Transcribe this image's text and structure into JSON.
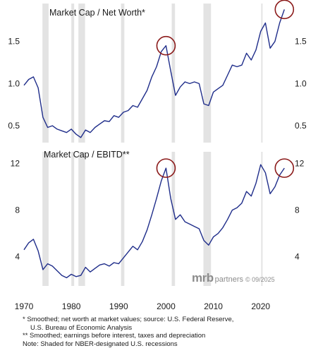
{
  "chart_data": [
    {
      "type": "line",
      "title": "Market Cap / Net Worth*",
      "y_ticks": [
        "0.5",
        "1.0",
        "1.5"
      ],
      "ylim": [
        0.3,
        1.95
      ],
      "xlim": [
        1970,
        2026
      ],
      "x": [
        1970,
        1971,
        1972,
        1973,
        1974,
        1975,
        1976,
        1977,
        1978,
        1979,
        1980,
        1981,
        1982,
        1983,
        1984,
        1985,
        1986,
        1987,
        1988,
        1989,
        1990,
        1991,
        1992,
        1993,
        1994,
        1995,
        1996,
        1997,
        1998,
        1999,
        2000,
        2001,
        2002,
        2003,
        2004,
        2005,
        2006,
        2007,
        2008,
        2009,
        2010,
        2011,
        2012,
        2013,
        2014,
        2015,
        2016,
        2017,
        2018,
        2019,
        2020,
        2021,
        2022,
        2023,
        2024,
        2025
      ],
      "values": [
        0.98,
        1.05,
        1.08,
        0.95,
        0.6,
        0.48,
        0.5,
        0.46,
        0.44,
        0.42,
        0.46,
        0.4,
        0.36,
        0.45,
        0.42,
        0.48,
        0.52,
        0.56,
        0.55,
        0.62,
        0.6,
        0.66,
        0.68,
        0.74,
        0.72,
        0.82,
        0.92,
        1.08,
        1.2,
        1.38,
        1.45,
        1.15,
        0.86,
        0.96,
        1.02,
        1.0,
        1.02,
        1.0,
        0.76,
        0.74,
        0.9,
        0.94,
        0.98,
        1.1,
        1.22,
        1.2,
        1.22,
        1.36,
        1.28,
        1.4,
        1.62,
        1.72,
        1.42,
        1.5,
        1.72,
        1.88
      ],
      "highlight_points": [
        {
          "x": 2000,
          "y": 1.45
        },
        {
          "x": 2025,
          "y": 1.88
        }
      ]
    },
    {
      "type": "line",
      "title": "Market Cap / EBITD**",
      "y_ticks": [
        "4",
        "8",
        "12"
      ],
      "ylim": [
        1.5,
        13.0
      ],
      "xlim": [
        1970,
        2026
      ],
      "x": [
        1970,
        1971,
        1972,
        1973,
        1974,
        1975,
        1976,
        1977,
        1978,
        1979,
        1980,
        1981,
        1982,
        1983,
        1984,
        1985,
        1986,
        1987,
        1988,
        1989,
        1990,
        1991,
        1992,
        1993,
        1994,
        1995,
        1996,
        1997,
        1998,
        1999,
        2000,
        2001,
        2002,
        2003,
        2004,
        2005,
        2006,
        2007,
        2008,
        2009,
        2010,
        2011,
        2012,
        2013,
        2014,
        2015,
        2016,
        2017,
        2018,
        2019,
        2020,
        2021,
        2022,
        2023,
        2024,
        2025
      ],
      "values": [
        4.6,
        5.2,
        5.5,
        4.5,
        2.9,
        3.4,
        3.2,
        2.8,
        2.4,
        2.2,
        2.5,
        2.3,
        2.4,
        3.1,
        2.7,
        3.0,
        3.3,
        3.4,
        3.2,
        3.5,
        3.4,
        3.9,
        4.4,
        4.9,
        4.6,
        5.3,
        6.3,
        7.6,
        9.0,
        10.5,
        11.6,
        9.0,
        7.2,
        7.6,
        7.0,
        6.8,
        6.6,
        6.4,
        5.4,
        5.0,
        5.7,
        6.0,
        6.5,
        7.2,
        8.0,
        8.2,
        8.6,
        9.6,
        9.2,
        10.3,
        11.9,
        11.2,
        9.4,
        10.0,
        11.0,
        11.6
      ],
      "highlight_points": [
        {
          "x": 2000,
          "y": 11.6
        },
        {
          "x": 2025,
          "y": 11.6
        }
      ]
    }
  ],
  "x_ticks": [
    "1970",
    "1980",
    "1990",
    "2000",
    "2010",
    "2020"
  ],
  "recessions": [
    [
      1973.9,
      1975.2
    ],
    [
      1980.0,
      1980.6
    ],
    [
      1981.5,
      1982.9
    ],
    [
      1990.5,
      1991.2
    ],
    [
      2001.2,
      2001.9
    ],
    [
      2007.9,
      2009.5
    ],
    [
      2020.1,
      2020.4
    ]
  ],
  "branding": {
    "name": "mrb",
    "suffix": "partners",
    "date": "© 09/2025"
  },
  "footnotes": [
    "*  Smoothed; net worth at market values; source: U.S. Federal Reserve,",
    "U.S. Bureau of Economic Analysis",
    "** Smoothed; earnings before interest, taxes and depreciation",
    "Note: Shaded for NBER-designated U.S. recessions"
  ],
  "colors": {
    "series": "#1f2d8a",
    "marker": "#8b1a1a",
    "recession": "#e3e3e3"
  }
}
